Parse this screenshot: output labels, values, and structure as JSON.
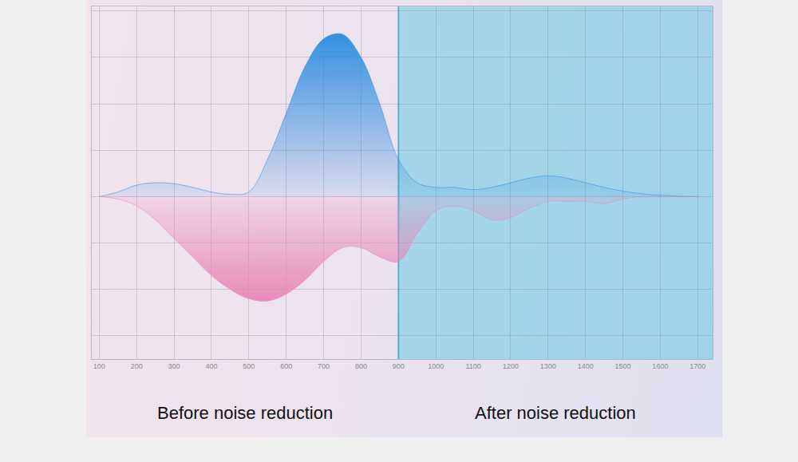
{
  "chart_data": {
    "type": "area",
    "x": [
      100,
      150,
      200,
      250,
      300,
      350,
      400,
      450,
      500,
      550,
      600,
      650,
      700,
      750,
      800,
      850,
      900,
      950,
      1000,
      1050,
      1100,
      1150,
      1200,
      1250,
      1300,
      1350,
      1400,
      1450,
      1500,
      1550,
      1600,
      1650,
      1700
    ],
    "series": [
      {
        "color": "#2b8be0",
        "values": [
          0,
          0.1,
          0.25,
          0.3,
          0.28,
          0.2,
          0.1,
          0.05,
          0.1,
          0.8,
          1.8,
          2.8,
          3.4,
          3.5,
          3.0,
          2.0,
          0.8,
          0.3,
          0.2,
          0.2,
          0.15,
          0.2,
          0.3,
          0.4,
          0.45,
          0.4,
          0.3,
          0.2,
          0.12,
          0.06,
          0.03,
          0.01,
          0
        ]
      },
      {
        "color": "#e887b8",
        "values": [
          0,
          -0.05,
          -0.2,
          -0.5,
          -0.9,
          -1.3,
          -1.7,
          -2.0,
          -2.2,
          -2.25,
          -2.1,
          -1.8,
          -1.4,
          -1.1,
          -1.1,
          -1.3,
          -1.4,
          -0.8,
          -0.3,
          -0.2,
          -0.3,
          -0.5,
          -0.45,
          -0.25,
          -0.1,
          -0.1,
          -0.1,
          -0.15,
          -0.05,
          0,
          0,
          0,
          0
        ]
      }
    ],
    "xlim": [
      80,
      1740
    ],
    "xticks": [
      100,
      200,
      300,
      400,
      500,
      600,
      700,
      800,
      900,
      1000,
      1100,
      1200,
      1300,
      1400,
      1500,
      1600,
      1700
    ],
    "ylim": [
      -3.5,
      4.1
    ],
    "yticks": [
      -3,
      -2,
      -1,
      0,
      1,
      2,
      3,
      4
    ],
    "shaded_x": [
      900,
      1740
    ],
    "annotations": [
      "Before noise reduction",
      "After noise reduction"
    ],
    "grid": true,
    "tick_labels": "x"
  }
}
